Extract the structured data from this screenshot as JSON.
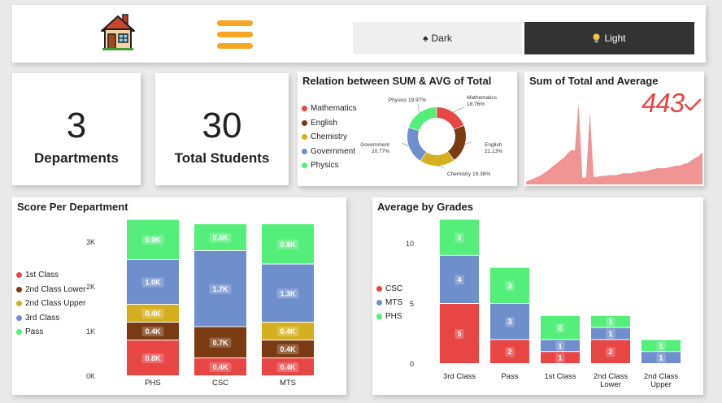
{
  "header": {
    "dark_label": "Dark",
    "light_label": "Light"
  },
  "kpis": [
    {
      "value": "3",
      "label": "Departments"
    },
    {
      "value": "30",
      "label": "Total Students"
    }
  ],
  "donut": {
    "title": "Relation between SUM & AVG of Total",
    "legend": [
      "Mathematics",
      "English",
      "Chemistry",
      "Government",
      "Physics"
    ],
    "labels": [
      {
        "name": "Mathematics",
        "pct": "18.76%"
      },
      {
        "name": "English",
        "pct": "21.13%"
      },
      {
        "name": "Chemistry",
        "pct": "19.38%"
      },
      {
        "name": "Government",
        "pct": "20.77%"
      },
      {
        "name": "Physics",
        "pct": "19.97%"
      }
    ]
  },
  "sum_panel": {
    "title": "Sum of Total and Average",
    "value": "443"
  },
  "colors": {
    "red": "#e84545",
    "brown": "#7a3b12",
    "gold": "#d4b020",
    "blue": "#6f8fcc",
    "green": "#54ee7a",
    "area": "#f19494",
    "dark_btn": "#efefef",
    "light_btn": "#333333"
  },
  "chart_data": [
    {
      "type": "pie",
      "title": "Relation between SUM & AVG of Total",
      "categories": [
        "Mathematics",
        "English",
        "Chemistry",
        "Government",
        "Physics"
      ],
      "values": [
        18.76,
        21.13,
        19.38,
        20.77,
        19.97
      ],
      "legend": "left"
    },
    {
      "type": "area",
      "title": "Sum of Total and Average",
      "values": [
        3,
        5,
        7,
        9,
        11,
        14,
        17,
        21,
        24,
        28,
        31,
        36,
        40,
        40,
        95,
        8,
        8,
        85,
        9,
        9,
        10,
        10,
        11,
        11,
        11,
        12,
        13,
        13,
        13,
        14,
        15,
        15,
        16,
        17,
        18,
        19,
        19,
        19,
        20,
        21,
        22,
        22,
        24,
        25,
        28,
        31,
        33,
        38
      ]
    },
    {
      "type": "bar",
      "stacked": true,
      "title": "Score Per Department",
      "categories": [
        "PHS",
        "CSC",
        "MTS"
      ],
      "series": [
        {
          "name": "1st Class",
          "values": [
            0.8,
            0.4,
            0.4
          ],
          "labels": [
            "0.8K",
            "0.4K",
            "0.4K"
          ]
        },
        {
          "name": "2nd Class Lower",
          "values": [
            0.4,
            0.7,
            0.4
          ],
          "labels": [
            "0.4K",
            "0.7K",
            "0.4K"
          ]
        },
        {
          "name": "2nd Class Upper",
          "values": [
            0.4,
            0,
            0.4
          ],
          "labels": [
            "0.4K",
            "",
            "0.4K"
          ]
        },
        {
          "name": "3rd Class",
          "values": [
            1.0,
            1.7,
            1.3
          ],
          "labels": [
            "1.0K",
            "1.7K",
            "1.3K"
          ]
        },
        {
          "name": "Pass",
          "values": [
            0.9,
            0.6,
            0.9
          ],
          "labels": [
            "0.9K",
            "0.6K",
            "0.9K"
          ]
        }
      ],
      "yticks": [
        "0K",
        "1K",
        "2K",
        "3K"
      ],
      "ylim": [
        0,
        3.4
      ],
      "legend": "left"
    },
    {
      "type": "bar",
      "stacked": true,
      "title": "Average by Grades",
      "categories": [
        "3rd Class",
        "Pass",
        "1st Class",
        "2nd Class Lower",
        "2nd Class Upper"
      ],
      "series": [
        {
          "name": "CSC",
          "values": [
            5,
            2,
            1,
            2,
            0
          ]
        },
        {
          "name": "MTS",
          "values": [
            4,
            3,
            1,
            1,
            1
          ]
        },
        {
          "name": "PHS",
          "values": [
            3,
            3,
            2,
            1,
            1
          ]
        }
      ],
      "yticks": [
        "0",
        "5",
        "10"
      ],
      "ylim": [
        0,
        13
      ],
      "legend": "left"
    }
  ]
}
